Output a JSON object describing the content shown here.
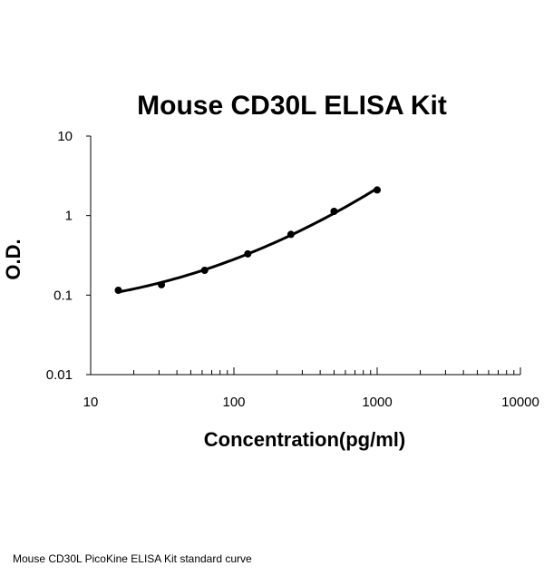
{
  "chart_data": {
    "type": "scatter",
    "title": "Mouse CD30L ELISA Kit",
    "xlabel": "Concentration(pg/ml)",
    "ylabel": "O.D.",
    "x_scale": "log",
    "y_scale": "log",
    "xlim": [
      10,
      10000
    ],
    "ylim": [
      0.01,
      10
    ],
    "x_ticks": [
      "10",
      "100",
      "1000",
      "10000"
    ],
    "y_ticks": [
      "0.01",
      "0.1",
      "1",
      "10"
    ],
    "grid": false,
    "legend": "none",
    "series": [
      {
        "x": [
          15.6,
          31.2,
          62.5,
          125,
          250,
          500,
          1000
        ],
        "y": [
          0.115,
          0.135,
          0.205,
          0.33,
          0.58,
          1.13,
          2.1
        ],
        "marker": "circle",
        "line": "smooth-fit",
        "color": "#000000"
      }
    ]
  },
  "caption": "Mouse CD30L PicoKine ELISA Kit standard curve"
}
